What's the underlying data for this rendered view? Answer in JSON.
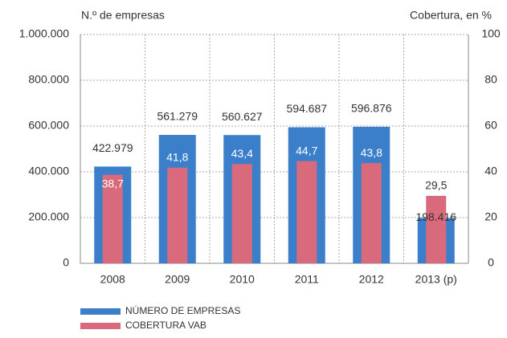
{
  "chart_data": {
    "type": "bar",
    "y_label": "N.º de empresas",
    "y2_label": "Cobertura, en %",
    "categories": [
      "2008",
      "2009",
      "2010",
      "2011",
      "2012",
      "2013 (p)"
    ],
    "series": [
      {
        "name": "NÚMERO DE EMPRESAS",
        "color": "#3b7fcb",
        "values": [
          422979,
          561279,
          560627,
          594687,
          596876,
          198416
        ],
        "value_labels": [
          "422.979",
          "561.279",
          "560.627",
          "594.687",
          "596.876",
          "198.416"
        ]
      },
      {
        "name": "COBERTURA VAB",
        "color": "#d96a7c",
        "axis": "y2",
        "values": [
          38.7,
          41.8,
          43.4,
          44.7,
          43.8,
          29.5
        ],
        "value_labels": [
          "38,7",
          "41,8",
          "43,4",
          "44,7",
          "43,8",
          "29,5"
        ]
      }
    ],
    "ylim": [
      0,
      1000000
    ],
    "yticks": [
      0,
      {
        "value": 200000,
        "label": "200.000"
      },
      {
        "value": 400000,
        "label": "400.000"
      },
      {
        "value": 600000,
        "label": "600.000"
      },
      {
        "value": 800000,
        "label": "800.000"
      },
      {
        "value": 1000000,
        "label": "1.000.000"
      }
    ],
    "y2lim": [
      0,
      100
    ],
    "y2ticks": [
      0,
      20,
      40,
      60,
      80,
      100
    ],
    "grid": true,
    "legend": "bottom-left"
  }
}
